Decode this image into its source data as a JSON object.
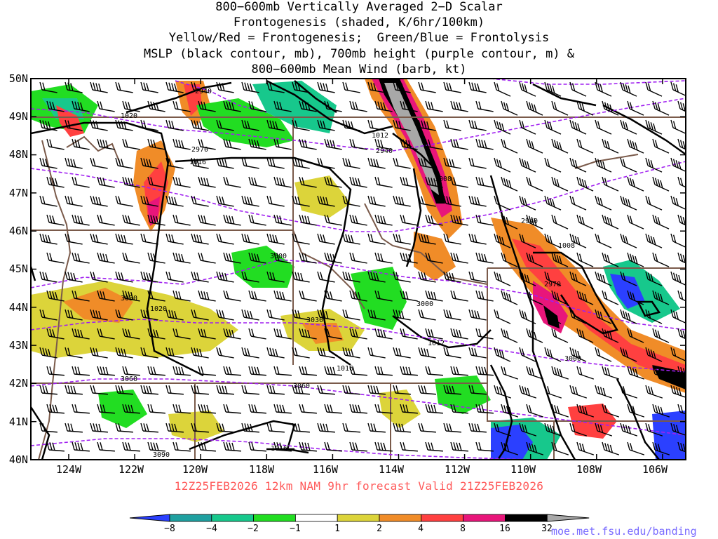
{
  "title_lines": [
    "800−600mb Vertically Averaged 2−D Scalar",
    "Frontogenesis (shaded, K/6hr/100km)",
    "Yellow/Red = Frontogenesis;  Green/Blue = Frontolysis",
    "MSLP (black contour, mb), 700mb height (purple contour, m) &",
    "800−600mb Mean Wind (barb, kt)"
  ],
  "lat_labels": [
    "50N",
    "49N",
    "48N",
    "47N",
    "46N",
    "45N",
    "44N",
    "43N",
    "42N",
    "41N",
    "40N"
  ],
  "lon_labels": [
    "124W",
    "122W",
    "120W",
    "118W",
    "116W",
    "114W",
    "112W",
    "110W",
    "108W",
    "106W"
  ],
  "footer": "12Z25FEB2026 12km NAM 9hr forecast Valid 21Z25FEB2026",
  "credit": "moe.met.fsu.edu/banding",
  "colorbar": {
    "labels": [
      "−8",
      "−4",
      "−2",
      "−1",
      "1",
      "2",
      "4",
      "8",
      "16",
      "32"
    ],
    "colors": [
      "#2b40ff",
      "#1fa0a0",
      "#17c88c",
      "#22dd22",
      "#ffffff",
      "#dcd43a",
      "#f08c28",
      "#ff4040",
      "#e8167a",
      "#000000",
      "#a8a8a8"
    ]
  },
  "mslp_labels": [
    "1020",
    "1020",
    "1016",
    "1016",
    "1016",
    "1012",
    "1012",
    "1008",
    "1008"
  ],
  "height_labels": [
    "2940",
    "2940",
    "2940",
    "2970",
    "2970",
    "3000",
    "3000",
    "3000",
    "3030",
    "3030",
    "3060",
    "3060",
    "3090"
  ],
  "colors": {
    "mslp": "#000000",
    "height": "#a020f0",
    "border": "#7a5a4a",
    "footer": "#ff5a5a",
    "credit": "#7a6cff"
  }
}
